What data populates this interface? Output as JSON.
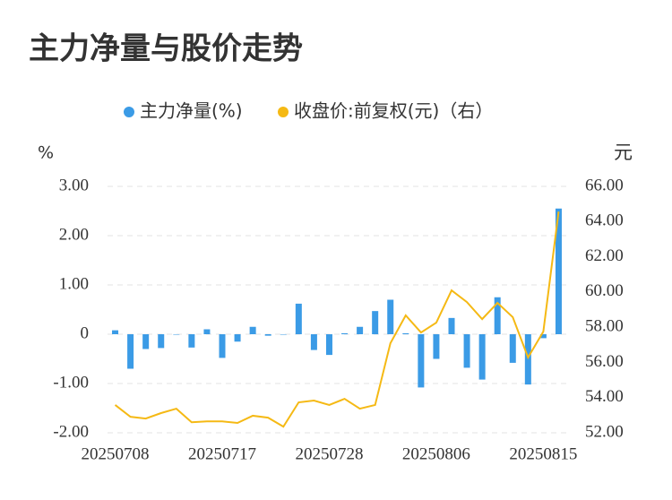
{
  "chart_data": {
    "type": "bar_line",
    "title": "主力净量与股价走势",
    "y_label": "%",
    "y2_label": "元",
    "categories": [
      "20250708",
      null,
      null,
      null,
      null,
      null,
      null,
      "20250717",
      null,
      null,
      null,
      null,
      null,
      null,
      "20250728",
      null,
      null,
      null,
      null,
      null,
      null,
      "20250806",
      null,
      null,
      null,
      null,
      null,
      null,
      "20250815",
      null
    ],
    "series": [
      {
        "name": "主力净量(%)",
        "type": "bar",
        "color": "#3b9be6",
        "values": [
          0.08,
          -0.7,
          -0.3,
          -0.28,
          0.0,
          -0.27,
          0.1,
          -0.48,
          -0.15,
          0.15,
          -0.03,
          0.0,
          0.62,
          -0.32,
          -0.42,
          0.02,
          0.15,
          0.47,
          0.7,
          0.02,
          -1.08,
          -0.5,
          0.33,
          -0.68,
          -0.92,
          0.75,
          -0.58,
          -1.02,
          -0.08,
          2.55
        ]
      },
      {
        "name": "收盘价:前复权(元)（右）",
        "type": "line",
        "axis": "y2",
        "color": "#f5b914",
        "values": [
          53.58,
          52.91,
          52.81,
          53.12,
          53.37,
          52.6,
          52.65,
          52.65,
          52.56,
          52.97,
          52.86,
          52.35,
          53.73,
          53.83,
          53.58,
          53.93,
          53.37,
          53.58,
          57.09,
          58.67,
          57.7,
          58.26,
          60.09,
          59.43,
          58.46,
          59.38,
          58.57,
          56.28,
          57.75,
          64.57
        ]
      }
    ],
    "ylim": [
      -2,
      3
    ],
    "yticks": [
      {
        "value": -2,
        "label": "-2.00"
      },
      {
        "value": -1,
        "label": "-1.00"
      },
      0,
      {
        "value": 1,
        "label": "1.00"
      },
      {
        "value": 2,
        "label": "2.00"
      },
      {
        "value": 3,
        "label": "3.00"
      }
    ],
    "y2lim": [
      52,
      66
    ],
    "y2ticks": [
      {
        "value": 52,
        "label": "52.00"
      },
      {
        "value": 54,
        "label": "54.00"
      },
      {
        "value": 56,
        "label": "56.00"
      },
      {
        "value": 58,
        "label": "58.00"
      },
      {
        "value": 60,
        "label": "60.00"
      },
      {
        "value": 62,
        "label": "62.00"
      },
      {
        "value": 64,
        "label": "64.00"
      },
      {
        "value": 66,
        "label": "66.00"
      }
    ],
    "grid": true,
    "legend": "top"
  }
}
